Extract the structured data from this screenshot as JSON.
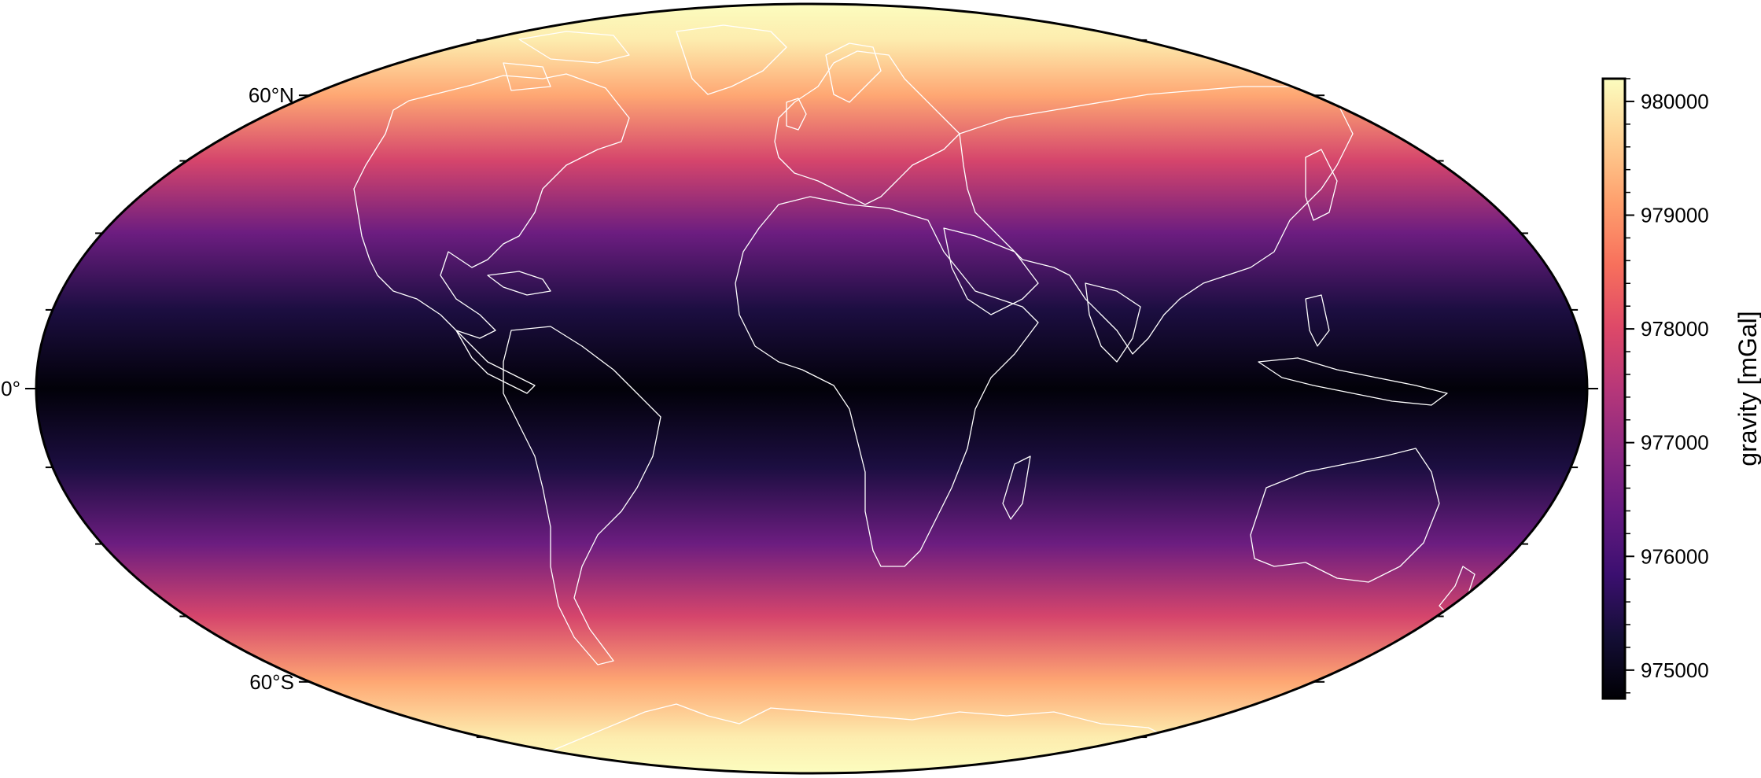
{
  "map": {
    "projection": "mollweide",
    "lat_labels": [
      {
        "lat": 60,
        "text": "60°N"
      },
      {
        "lat": 0,
        "text": "0°"
      },
      {
        "lat": -60,
        "text": "60°S"
      }
    ],
    "coastline_color": "#ffffff",
    "frame_color": "#000000"
  },
  "colorbar": {
    "label": "gravity [mGal]",
    "cmap": "magma",
    "min": 974750,
    "max": 980200,
    "major_ticks": [
      975000,
      976000,
      977000,
      978000,
      979000,
      980000
    ],
    "major_labels": [
      "975000",
      "976000",
      "977000",
      "978000",
      "979000",
      "980000"
    ],
    "minor_step": 200
  },
  "chart_data": {
    "type": "heatmap",
    "title": "",
    "variable": "gravity",
    "units": "mGal",
    "description_levels": [
      {
        "latitude": 90,
        "gravity": 980200
      },
      {
        "latitude": 75,
        "gravity": 980000
      },
      {
        "latitude": 60,
        "gravity": 979200
      },
      {
        "latitude": 45,
        "gravity": 977900
      },
      {
        "latitude": 30,
        "gravity": 976500
      },
      {
        "latitude": 15,
        "gravity": 975400
      },
      {
        "latitude": 0,
        "gravity": 974800
      },
      {
        "latitude": -15,
        "gravity": 975400
      },
      {
        "latitude": -30,
        "gravity": 976500
      },
      {
        "latitude": -45,
        "gravity": 977900
      },
      {
        "latitude": -60,
        "gravity": 979200
      },
      {
        "latitude": -75,
        "gravity": 980000
      },
      {
        "latitude": -90,
        "gravity": 980200
      }
    ],
    "value_range": [
      974750,
      980200
    ]
  }
}
